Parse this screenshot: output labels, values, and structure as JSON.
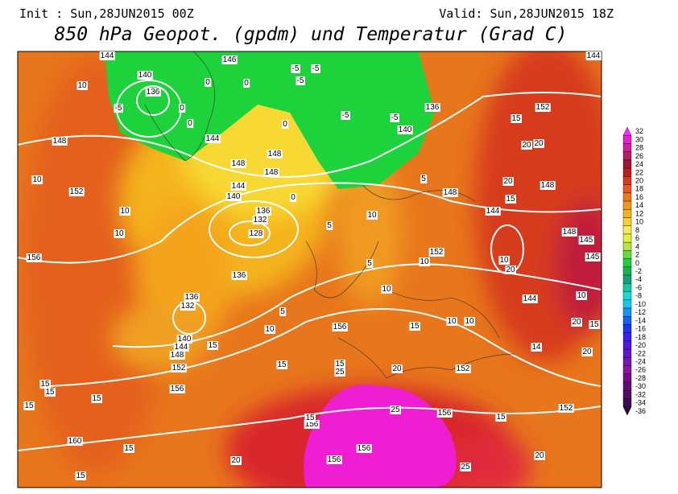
{
  "header": {
    "init": "Init : Sun,28JUN2015 00Z",
    "valid": "Valid: Sun,28JUN2015 18Z",
    "title": "850 hPa Geopot. (gpdm) und Temperatur (Grad C)"
  },
  "legend": {
    "labels": [
      "32",
      "30",
      "28",
      "26",
      "24",
      "22",
      "20",
      "18",
      "16",
      "14",
      "12",
      "10",
      "8",
      "6",
      "4",
      "2",
      "0",
      "-2",
      "-4",
      "-6",
      "-8",
      "-10",
      "-12",
      "-14",
      "-16",
      "-18",
      "-20",
      "-22",
      "-24",
      "-26",
      "-28",
      "-30",
      "-32",
      "-34",
      "-36"
    ],
    "colors": [
      "#ff28ff",
      "#f01ed2",
      "#d01ea0",
      "#b41e64",
      "#a01432",
      "#c01e1e",
      "#d63a1e",
      "#e85a1e",
      "#ee7a1c",
      "#f2961c",
      "#f4b41c",
      "#f8d030",
      "#f8e85a",
      "#e6f03c",
      "#b4e63c",
      "#64dc3c",
      "#1ed23c",
      "#14b450",
      "#14a078",
      "#14c8a0",
      "#14dcd2",
      "#14c8f0",
      "#1496f0",
      "#1464f0",
      "#1e32f0",
      "#3c1ef0",
      "#5014dc",
      "#6414c8",
      "#7814b4",
      "#8c14a0",
      "#780a8c",
      "#640a78",
      "#500a64",
      "#3c0a50",
      "#280a3c"
    ]
  },
  "map_labels": [
    "144",
    "146",
    "140",
    "136",
    "-5",
    "0",
    "0",
    "0",
    "0",
    "-5",
    "-5",
    "-5",
    "-5",
    "-5",
    "140",
    "136",
    "10",
    "148",
    "10",
    "152",
    "10",
    "10",
    "144",
    "148",
    "144",
    "140",
    "148",
    "148",
    "0",
    "0",
    "132",
    "128",
    "136",
    "5",
    "10",
    "5",
    "148",
    "144",
    "152",
    "10",
    "5",
    "10",
    "136",
    "156",
    "136",
    "132",
    "5",
    "10",
    "156",
    "15",
    "10",
    "10",
    "140",
    "144",
    "148",
    "15",
    "152",
    "15",
    "15",
    "25",
    "20",
    "152",
    "156",
    "15",
    "15",
    "15",
    "15",
    "25",
    "156",
    "15",
    "152",
    "160",
    "15",
    "156",
    "15",
    "156",
    "156",
    "20",
    "25",
    "20",
    "15",
    "152",
    "15",
    "20",
    "20",
    "20",
    "15",
    "148",
    "148",
    "145",
    "145",
    "10",
    "144",
    "10",
    "20",
    "15",
    "14",
    "20",
    "20",
    "144"
  ]
}
